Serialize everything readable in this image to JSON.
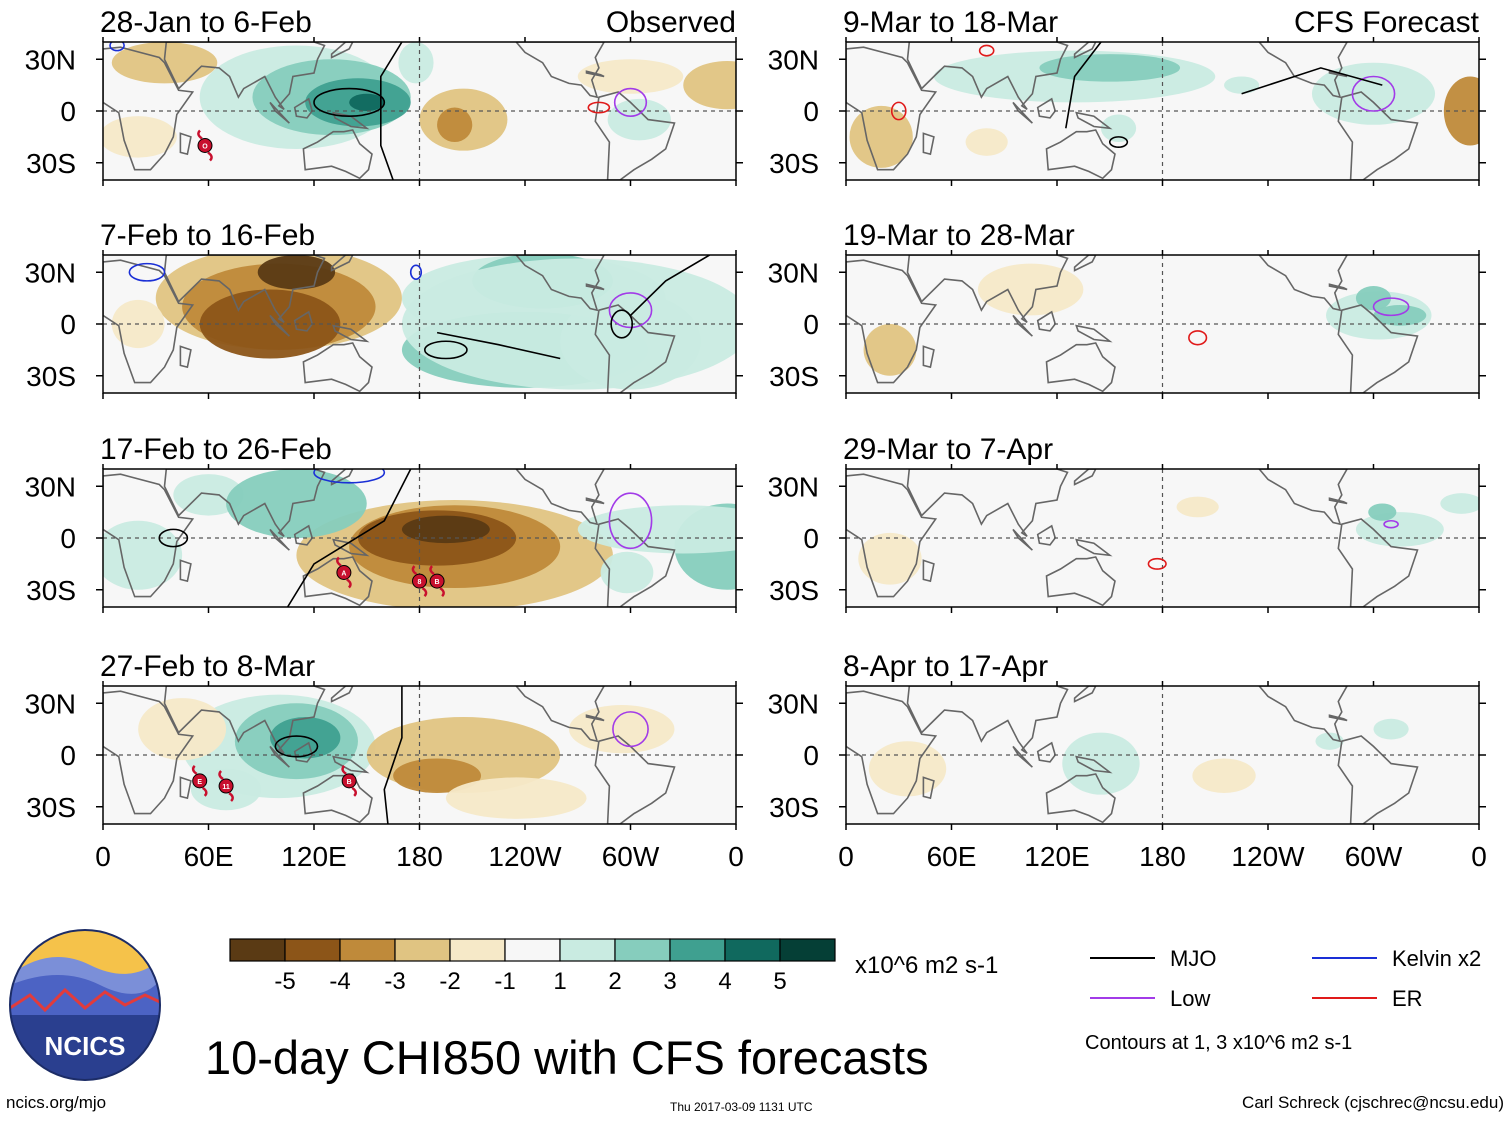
{
  "title": "10-day CHI850 with CFS forecasts",
  "website": "ncics.org/mjo",
  "timestamp": "Thu 2017-03-09 1131 UTC",
  "credit": "Carl Schreck (cjschrec@ncsu.edu)",
  "logo_text": "NCICS",
  "colorbar": {
    "units": "x10^6 m2 s-1",
    "tick_labels": [
      "-5",
      "-4",
      "-3",
      "-2",
      "-1",
      "1",
      "2",
      "3",
      "4",
      "5"
    ],
    "colors": [
      "#5a3a14",
      "#8c5518",
      "#bf8a3a",
      "#e0c482",
      "#f6e9c8",
      "#f7f7f7",
      "#c9ebe1",
      "#86cdbd",
      "#3fa090",
      "#10695e",
      "#053f36"
    ]
  },
  "contour_legend": {
    "items": [
      {
        "label": "MJO",
        "color": "#000000"
      },
      {
        "label": "Kelvin x2",
        "color": "#1a2fd6"
      },
      {
        "label": "Low",
        "color": "#a23be8"
      },
      {
        "label": "ER",
        "color": "#e01a1a"
      }
    ],
    "note": "Contours at 1, 3 x10^6 m2 s-1"
  },
  "axes": {
    "lat_labels": [
      "30N",
      "0",
      "30S"
    ],
    "lon_labels": [
      "0",
      "60E",
      "120E",
      "180",
      "120W",
      "60W",
      "0"
    ]
  },
  "panels": [
    {
      "period": "28-Jan to 6-Feb",
      "label": "Observed"
    },
    {
      "period": "7-Feb to 16-Feb",
      "label": ""
    },
    {
      "period": "17-Feb to 26-Feb",
      "label": ""
    },
    {
      "period": "27-Feb to 8-Mar",
      "label": ""
    },
    {
      "period": "9-Mar to 18-Mar",
      "label": "CFS Forecast"
    },
    {
      "period": "19-Mar to 28-Mar",
      "label": ""
    },
    {
      "period": "29-Mar to 7-Apr",
      "label": ""
    },
    {
      "period": "8-Apr to 17-Apr",
      "label": ""
    }
  ],
  "storm_markers": [
    {
      "panel": 0,
      "label": "O"
    },
    {
      "panel": 2,
      "label": "A"
    },
    {
      "panel": 2,
      "label": "8"
    },
    {
      "panel": 2,
      "label": "B"
    },
    {
      "panel": 3,
      "label": "E"
    },
    {
      "panel": 3,
      "label": "11"
    },
    {
      "panel": 3,
      "label": "B"
    }
  ]
}
